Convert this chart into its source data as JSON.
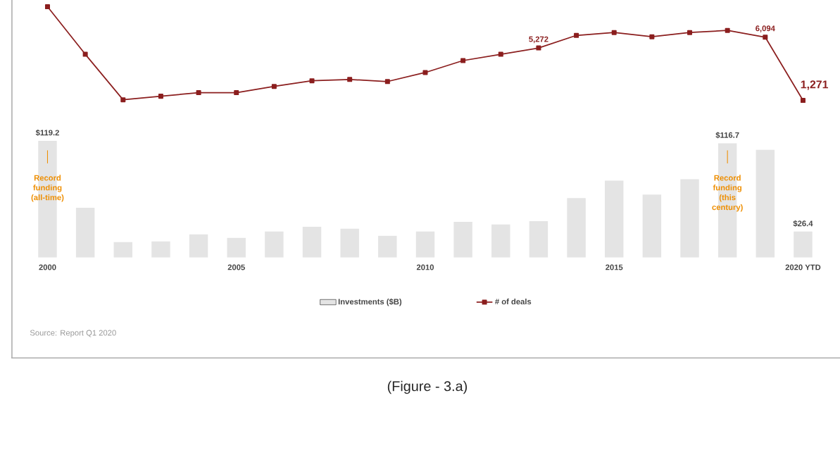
{
  "chart_data": [
    {
      "type": "bar",
      "categories": [
        "2000",
        null,
        null,
        null,
        null,
        "2005",
        null,
        null,
        null,
        null,
        "2010",
        null,
        null,
        null,
        null,
        "2015",
        null,
        null,
        null,
        null,
        "2020 YTD"
      ],
      "series": [
        {
          "name": "Investments ($B)",
          "color": "#e4e4e4",
          "values": [
            119.2,
            50.7,
            15.7,
            16.4,
            23.6,
            20,
            26.4,
            31.4,
            29.3,
            22.1,
            26.4,
            36.4,
            33.6,
            37.1,
            60.7,
            78.5,
            64.3,
            80,
            116.7,
            110,
            26.4
          ],
          "value_labels": [
            "$119.2",
            null,
            null,
            null,
            null,
            null,
            null,
            null,
            null,
            null,
            null,
            null,
            null,
            null,
            null,
            null,
            null,
            null,
            "$116.7",
            null,
            "$26.4"
          ]
        }
      ],
      "tick_labels": "x",
      "legend": "bottom",
      "annotations": [
        "Record funding (all-time)",
        "Record funding (this century)",
        "Source: Report Q1 2020",
        "(Figure - 3.a)"
      ]
    },
    {
      "type": "line",
      "categories": [
        null,
        null,
        null,
        null,
        null,
        null,
        null,
        null,
        null,
        null,
        null,
        null,
        null,
        null,
        null,
        null,
        null,
        null,
        null,
        null,
        null
      ],
      "series": [
        {
          "name": "# of deals",
          "color": "#8b1e1e",
          "marker": "square",
          "values": [
            8420,
            4790,
            1320,
            1590,
            1860,
            1860,
            2340,
            2770,
            2870,
            2710,
            3400,
            4310,
            4790,
            5272,
            6230,
            6450,
            6130,
            6450,
            6610,
            6094,
            1271
          ],
          "value_labels": [
            null,
            null,
            null,
            null,
            null,
            null,
            null,
            null,
            null,
            null,
            null,
            null,
            null,
            "5,272",
            null,
            null,
            null,
            null,
            null,
            "6,094",
            "1,271"
          ]
        }
      ],
      "tick_labels": false,
      "legend": "bottom"
    }
  ]
}
